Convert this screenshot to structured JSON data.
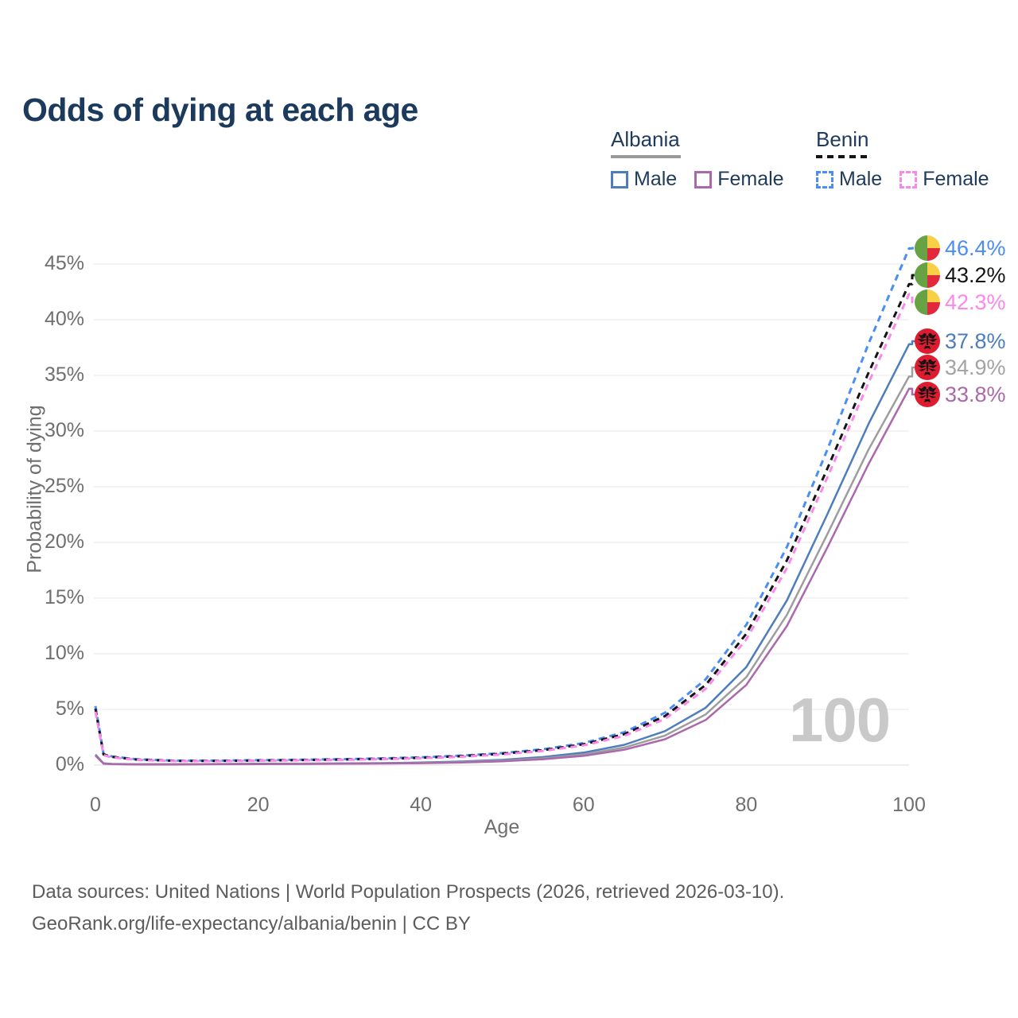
{
  "title": "Odds of dying at each age",
  "legend": {
    "groups": [
      {
        "country": "Albania",
        "items": [
          {
            "label": "Male"
          },
          {
            "label": "Female"
          }
        ]
      },
      {
        "country": "Benin",
        "items": [
          {
            "label": "Male"
          },
          {
            "label": "Female"
          }
        ]
      }
    ]
  },
  "watermark": "100",
  "end_labels": [
    {
      "text": "46.4%",
      "color": "#4a8df5",
      "flag": "benin-flag"
    },
    {
      "text": "43.2%",
      "color": "#141414",
      "flag": "benin-flag"
    },
    {
      "text": "42.3%",
      "color": "#fb87ea",
      "flag": "benin-flag"
    },
    {
      "text": "37.8%",
      "color": "#4d7dbc",
      "flag": "albania-flag"
    },
    {
      "text": "34.9%",
      "color": "#a3a3a3",
      "flag": "albania-flag"
    },
    {
      "text": "33.8%",
      "color": "#ab68ab",
      "flag": "albania-flag"
    }
  ],
  "source": {
    "line1": "Data sources: United Nations | World Population Prospects (2026, retrieved 2026-03-10).",
    "line2": "GeoRank.org/life-expectancy/albania/benin | CC BY"
  },
  "colors": {
    "title": "#1b3a5c",
    "axis_text": "#6f6f6f",
    "gridline": "#ececec",
    "albania_male": "#4d7dbc",
    "albania_both": "#9d9d9d",
    "albania_female": "#ab68ab",
    "benin_male": "#4a8df5",
    "benin_both": "#141414",
    "benin_female": "#fb87ea",
    "benin_flag_green": "#67a344",
    "benin_flag_yellow": "#f8cf45",
    "benin_flag_red": "#e2283c",
    "albania_flag_red": "#dd1c30"
  },
  "chart_data": {
    "type": "line",
    "title": "Odds of dying at each age",
    "xlabel": "Age",
    "ylabel": "Probability of dying",
    "xlim": [
      0,
      100
    ],
    "ylim_percent": [
      0,
      46.5
    ],
    "grid": "horizontal",
    "legend_position": "top-right",
    "x_ticks": [
      0,
      20,
      40,
      60,
      80,
      100
    ],
    "y_ticks_percent": [
      0,
      5,
      10,
      15,
      20,
      25,
      30,
      35,
      40,
      45
    ],
    "x": [
      0,
      1,
      2,
      5,
      10,
      15,
      20,
      25,
      30,
      35,
      40,
      45,
      50,
      55,
      60,
      65,
      70,
      75,
      80,
      85,
      90,
      95,
      100
    ],
    "series": [
      {
        "name": "Benin Male",
        "style": "dashed",
        "color": "#4a8df5",
        "end_label": "46.4%",
        "values_percent": [
          5.3,
          1.0,
          0.78,
          0.52,
          0.4,
          0.4,
          0.44,
          0.48,
          0.53,
          0.6,
          0.7,
          0.85,
          1.08,
          1.42,
          1.98,
          2.95,
          4.7,
          7.7,
          12.6,
          19.6,
          28.4,
          37.8,
          46.4
        ]
      },
      {
        "name": "Benin Both sexes",
        "style": "dashed",
        "color": "#141414",
        "end_label": "43.2%",
        "values_percent": [
          5.05,
          0.95,
          0.74,
          0.5,
          0.38,
          0.38,
          0.41,
          0.45,
          0.5,
          0.56,
          0.66,
          0.8,
          1.02,
          1.34,
          1.87,
          2.78,
          4.4,
          7.2,
          11.8,
          18.4,
          26.7,
          35.2,
          43.2
        ]
      },
      {
        "name": "Benin Female",
        "style": "dashed",
        "color": "#fb87ea",
        "end_label": "42.3%",
        "values_percent": [
          4.8,
          0.9,
          0.7,
          0.47,
          0.36,
          0.35,
          0.39,
          0.42,
          0.47,
          0.53,
          0.62,
          0.75,
          0.96,
          1.27,
          1.77,
          2.62,
          4.15,
          6.85,
          11.3,
          17.7,
          25.9,
          34.3,
          42.3
        ]
      },
      {
        "name": "Albania Male",
        "style": "solid",
        "color": "#4d7dbc",
        "end_label": "37.8%",
        "values_percent": [
          0.95,
          0.16,
          0.11,
          0.08,
          0.08,
          0.1,
          0.12,
          0.13,
          0.15,
          0.18,
          0.23,
          0.32,
          0.47,
          0.72,
          1.12,
          1.82,
          3.05,
          5.15,
          8.8,
          14.8,
          22.6,
          30.6,
          37.8
        ]
      },
      {
        "name": "Albania Both sexes",
        "style": "solid",
        "color": "#9d9d9d",
        "end_label": "34.9%",
        "values_percent": [
          0.9,
          0.14,
          0.1,
          0.07,
          0.07,
          0.09,
          0.1,
          0.12,
          0.13,
          0.16,
          0.2,
          0.27,
          0.4,
          0.61,
          0.96,
          1.58,
          2.65,
          4.55,
          7.9,
          13.5,
          20.8,
          28.3,
          34.9
        ]
      },
      {
        "name": "Albania Female",
        "style": "solid",
        "color": "#ab68ab",
        "end_label": "33.8%",
        "values_percent": [
          0.85,
          0.13,
          0.09,
          0.06,
          0.06,
          0.08,
          0.09,
          0.1,
          0.12,
          0.14,
          0.17,
          0.23,
          0.34,
          0.53,
          0.83,
          1.38,
          2.32,
          4.05,
          7.2,
          12.5,
          19.6,
          27.0,
          33.8
        ]
      }
    ]
  }
}
